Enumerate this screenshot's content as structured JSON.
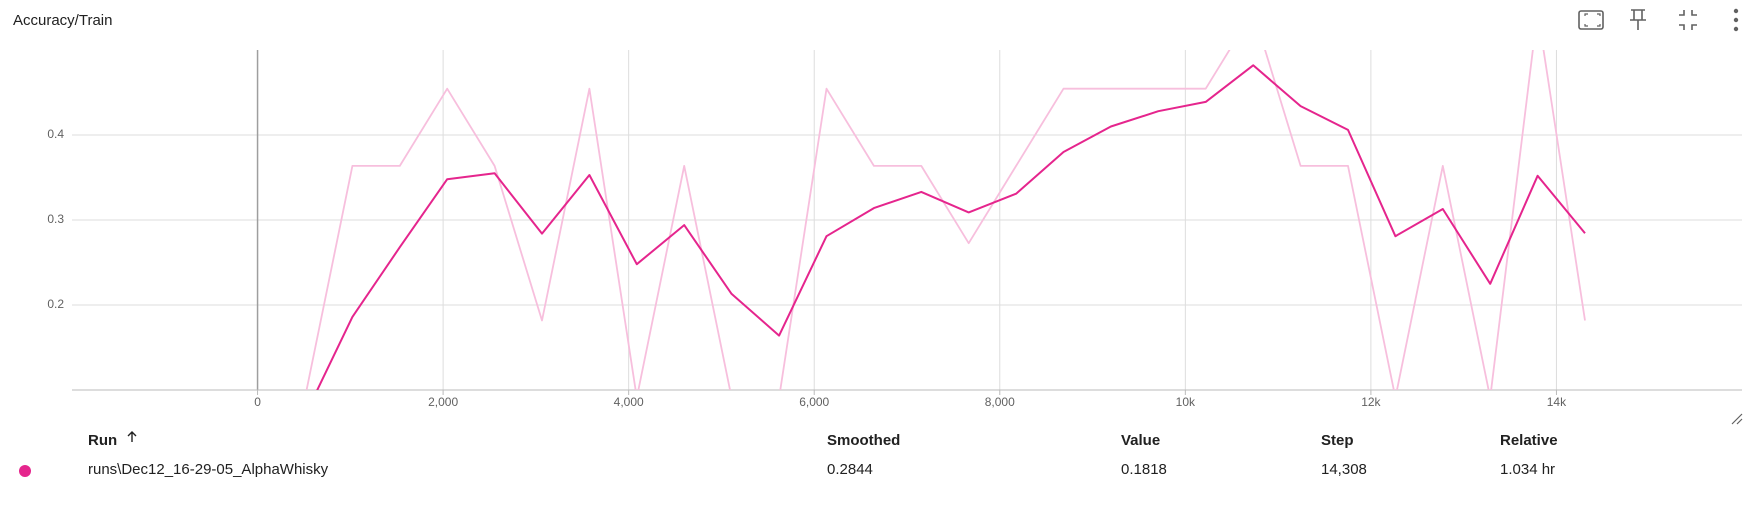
{
  "chart_data": {
    "type": "line",
    "title": "Accuracy/Train",
    "x": [
      511,
      1022,
      1533,
      2044,
      2555,
      3066,
      3577,
      4088,
      4599,
      5110,
      5621,
      6132,
      6643,
      7154,
      7665,
      8176,
      8687,
      9198,
      9709,
      10220,
      10731,
      11242,
      11753,
      12264,
      12775,
      13286,
      13797,
      14308
    ],
    "series": [
      {
        "color": "#f7bfdd",
        "values": [
          0.0909,
          0.3636,
          0.3636,
          0.4545,
          0.3636,
          0.1818,
          0.4545,
          0.0909,
          0.3636,
          0.0909,
          0.0909,
          0.4545,
          0.3636,
          0.3636,
          0.2727,
          0.3636,
          0.4545,
          0.4545,
          0.4545,
          0.4545,
          0.5455,
          0.3636,
          0.3636,
          0.0909,
          0.3636,
          0.0909,
          0.5455,
          0.1818
        ]
      },
      {
        "color": "#e5258d",
        "values": [
          0.07,
          0.186,
          0.268,
          0.348,
          0.355,
          0.284,
          0.353,
          0.248,
          0.294,
          0.213,
          0.164,
          0.281,
          0.314,
          0.333,
          0.309,
          0.331,
          0.38,
          0.41,
          0.428,
          0.439,
          0.482,
          0.434,
          0.406,
          0.281,
          0.313,
          0.225,
          0.352,
          0.2844
        ]
      }
    ],
    "xlim": [
      -2000,
      16000
    ],
    "xticks": [
      0,
      {
        "value": 2000,
        "label": "2,000"
      },
      {
        "value": 4000,
        "label": "4,000"
      },
      {
        "value": 6000,
        "label": "6,000"
      },
      {
        "value": 8000,
        "label": "8,000"
      },
      {
        "value": 10000,
        "label": "10k"
      },
      {
        "value": 12000,
        "label": "12k"
      },
      {
        "value": 14000,
        "label": "14k"
      }
    ],
    "ylim": [
      0.1,
      0.5
    ],
    "yticks": [
      0.2,
      0.3,
      0.4
    ],
    "grid": true
  },
  "table": {
    "headers": [
      "Run",
      "Smoothed",
      "Value",
      "Step",
      "Relative"
    ],
    "rows": [
      [
        "runs\\Dec12_16-29-05_AlphaWhisky",
        "0.2844",
        "0.1818",
        "14,308",
        "1.034 hr"
      ]
    ],
    "run_color": "#e5258d"
  }
}
